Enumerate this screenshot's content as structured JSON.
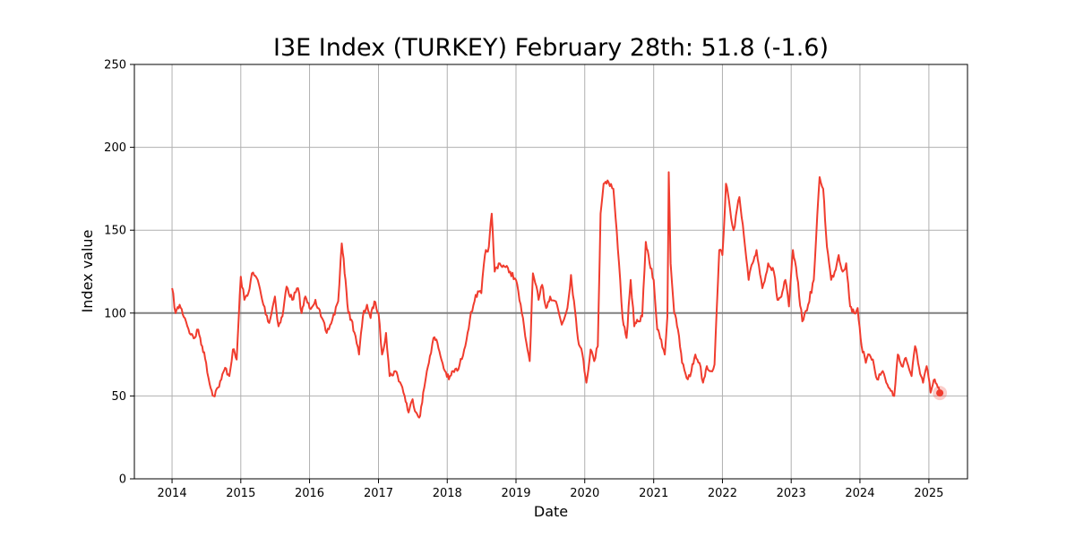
{
  "chart_data": {
    "type": "line",
    "title": "I3E Index (TURKEY) February 28th: 51.8 (-1.6)",
    "xlabel": "Date",
    "ylabel": "Index value",
    "xlim": [
      "2013-06-15",
      "2025-07-25"
    ],
    "ylim": [
      0,
      250
    ],
    "x_ticks": [
      "2014",
      "2015",
      "2016",
      "2017",
      "2018",
      "2019",
      "2020",
      "2021",
      "2022",
      "2023",
      "2024",
      "2025"
    ],
    "y_ticks": [
      0,
      50,
      100,
      150,
      200,
      250
    ],
    "grid": true,
    "reference_line": 100,
    "colors": {
      "series": "#f03c2e",
      "reference": "#808080",
      "grid": "#b0b0b0",
      "last_marker": "#f03c2e"
    },
    "series": [
      {
        "x": [
          "2014-01-01",
          "2014-01-20",
          "2014-02-10",
          "2014-03-10",
          "2014-04-10",
          "2014-05-01",
          "2014-05-20",
          "2014-06-10",
          "2014-07-01",
          "2014-07-20",
          "2014-08-10",
          "2014-09-01",
          "2014-09-20",
          "2014-10-10",
          "2014-11-01",
          "2014-11-20",
          "2014-12-10",
          "2015-01-01",
          "2015-01-20",
          "2015-02-10",
          "2015-03-01",
          "2015-04-01",
          "2015-05-01",
          "2015-06-01",
          "2015-07-01",
          "2015-07-20",
          "2015-08-10",
          "2015-09-01",
          "2015-10-01",
          "2015-11-01",
          "2015-11-20",
          "2015-12-10",
          "2016-01-01",
          "2016-02-01",
          "2016-03-01",
          "2016-04-01",
          "2016-05-01",
          "2016-06-01",
          "2016-06-20",
          "2016-07-10",
          "2016-07-25",
          "2016-08-10",
          "2016-09-01",
          "2016-09-20",
          "2016-10-10",
          "2016-11-01",
          "2016-11-20",
          "2016-12-10",
          "2017-01-01",
          "2017-01-20",
          "2017-02-10",
          "2017-03-01",
          "2017-04-01",
          "2017-05-01",
          "2017-05-20",
          "2017-06-10",
          "2017-07-01",
          "2017-07-20",
          "2017-08-10",
          "2017-09-01",
          "2017-09-15",
          "2017-10-01",
          "2017-10-20",
          "2017-11-10",
          "2017-12-01",
          "2017-12-20",
          "2018-01-10",
          "2018-02-01",
          "2018-03-01",
          "2018-04-01",
          "2018-05-01",
          "2018-06-01",
          "2018-07-01",
          "2018-07-20",
          "2018-08-10",
          "2018-08-25",
          "2018-09-10",
          "2018-10-01",
          "2018-11-01",
          "2018-12-01",
          "2019-01-01",
          "2019-02-01",
          "2019-02-25",
          "2019-03-15",
          "2019-04-01",
          "2019-05-01",
          "2019-05-20",
          "2019-06-10",
          "2019-07-01",
          "2019-08-01",
          "2019-09-01",
          "2019-10-01",
          "2019-10-20",
          "2019-11-10",
          "2019-12-01",
          "2019-12-20",
          "2020-01-10",
          "2020-02-01",
          "2020-02-20",
          "2020-03-10",
          "2020-03-25",
          "2020-04-10",
          "2020-05-01",
          "2020-06-01",
          "2020-07-01",
          "2020-07-20",
          "2020-08-10",
          "2020-09-01",
          "2020-09-20",
          "2020-10-10",
          "2020-11-01",
          "2020-11-20",
          "2020-12-10",
          "2021-01-01",
          "2021-01-20",
          "2021-02-10",
          "2021-03-01",
          "2021-03-15",
          "2021-03-22",
          "2021-04-01",
          "2021-04-20",
          "2021-05-10",
          "2021-06-01",
          "2021-07-01",
          "2021-07-20",
          "2021-08-10",
          "2021-09-01",
          "2021-09-20",
          "2021-10-10",
          "2021-11-01",
          "2021-11-20",
          "2021-12-01",
          "2021-12-15",
          "2022-01-01",
          "2022-01-20",
          "2022-02-10",
          "2022-03-01",
          "2022-04-01",
          "2022-05-01",
          "2022-05-20",
          "2022-06-10",
          "2022-07-01",
          "2022-08-01",
          "2022-09-01",
          "2022-10-01",
          "2022-10-20",
          "2022-11-10",
          "2022-12-01",
          "2022-12-20",
          "2023-01-10",
          "2023-02-01",
          "2023-03-01",
          "2023-04-01",
          "2023-05-01",
          "2023-06-01",
          "2023-06-20",
          "2023-07-10",
          "2023-08-01",
          "2023-08-20",
          "2023-09-10",
          "2023-10-01",
          "2023-10-20",
          "2023-11-10",
          "2023-12-01",
          "2023-12-20",
          "2024-01-10",
          "2024-02-01",
          "2024-02-20",
          "2024-03-10",
          "2024-04-01",
          "2024-05-01",
          "2024-06-01",
          "2024-07-01",
          "2024-07-20",
          "2024-08-10",
          "2024-09-01",
          "2024-10-01",
          "2024-10-20",
          "2024-11-10",
          "2024-12-01",
          "2024-12-20",
          "2025-01-10",
          "2025-02-01",
          "2025-02-28"
        ],
        "y": [
          115,
          100,
          105,
          97,
          87,
          85,
          90,
          80,
          70,
          57,
          50,
          55,
          60,
          67,
          62,
          78,
          72,
          122,
          108,
          112,
          124,
          120,
          105,
          94,
          110,
          92,
          98,
          116,
          108,
          115,
          100,
          110,
          103,
          108,
          98,
          88,
          96,
          107,
          142,
          120,
          100,
          96,
          86,
          75,
          98,
          105,
          97,
          107,
          100,
          75,
          88,
          62,
          65,
          57,
          50,
          40,
          48,
          40,
          38,
          55,
          65,
          74,
          85,
          82,
          72,
          65,
          60,
          65,
          66,
          78,
          96,
          111,
          112,
          135,
          140,
          160,
          125,
          130,
          128,
          125,
          120,
          100,
          82,
          71,
          124,
          108,
          117,
          103,
          110,
          107,
          93,
          103,
          123,
          102,
          81,
          75,
          58,
          78,
          71,
          80,
          160,
          178,
          180,
          175,
          130,
          97,
          85,
          120,
          92,
          95,
          98,
          143,
          130,
          120,
          90,
          84,
          75,
          98,
          185,
          130,
          100,
          90,
          70,
          60,
          65,
          75,
          70,
          58,
          68,
          65,
          69,
          100,
          138,
          135,
          178,
          163,
          150,
          170,
          140,
          120,
          130,
          138,
          115,
          130,
          125,
          108,
          110,
          120,
          104,
          138,
          122,
          95,
          105,
          120,
          182,
          175,
          140,
          120,
          125,
          135,
          125,
          130,
          104,
          100,
          103,
          80,
          70,
          75,
          72,
          60,
          65,
          55,
          50,
          75,
          68,
          73,
          62,
          80,
          67,
          58,
          68,
          52,
          60,
          51.8
        ]
      }
    ]
  }
}
